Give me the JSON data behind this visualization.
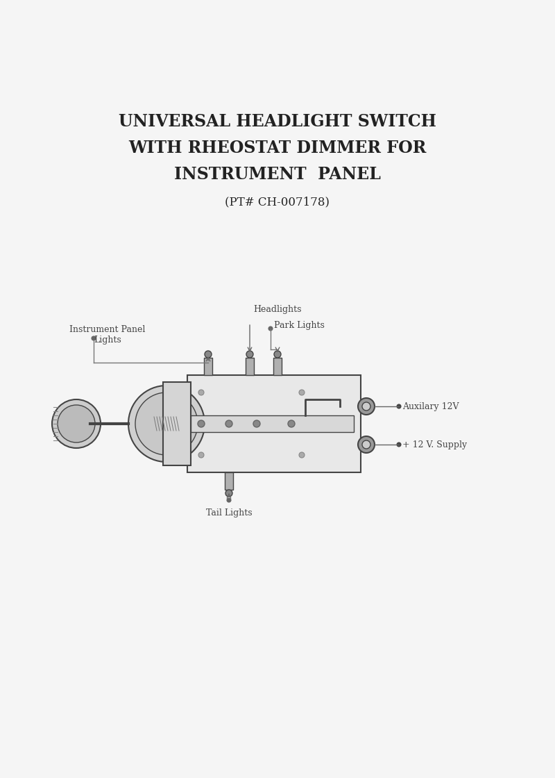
{
  "title_line1": "UNIVERSAL HEADLIGHT SWITCH",
  "title_line2": "WITH RHEOSTAT DIMMER FOR",
  "title_line3": "INSTRUMENT  PANEL",
  "subtitle": "(PT# CH-007178)",
  "bg_color": "#f5f5f5",
  "line_color": "#444444",
  "label_color": "#333333",
  "title_fontsize": 17,
  "subtitle_fontsize": 12,
  "label_fontsize": 9,
  "labels": {
    "headlights": "Headlights",
    "park_lights": "Park Lights",
    "instrument_panel": "Instrument Panel\nLights",
    "tail_lights": "Tail Lights",
    "auxiliary": "Auxilary 12V",
    "supply": "+ 12 V. Supply"
  }
}
